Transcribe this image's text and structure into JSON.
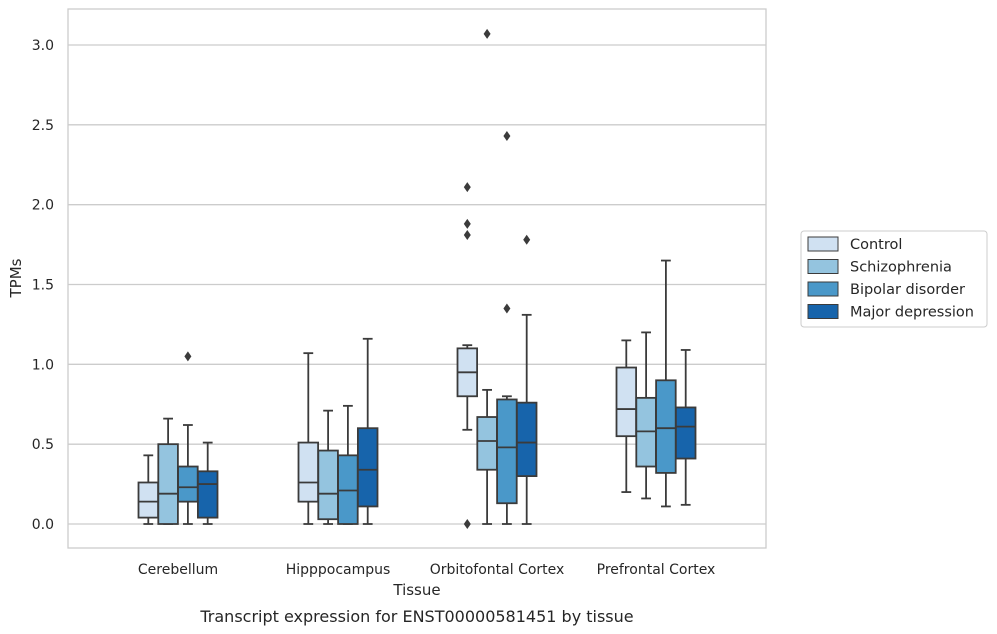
{
  "chart_data": {
    "type": "box",
    "title": "",
    "caption": "Transcript expression for ENST00000581451 by tissue",
    "xlabel": "Tissue",
    "ylabel": "TPMs",
    "ylim": [
      -0.15,
      3.22
    ],
    "yticks": [
      0.0,
      0.5,
      1.0,
      1.5,
      2.0,
      2.5,
      3.0
    ],
    "ytick_labels": [
      "0.0",
      "0.5",
      "1.0",
      "1.5",
      "2.0",
      "2.5",
      "3.0"
    ],
    "grid": "horizontal",
    "legend_position": "right",
    "categories": [
      "Cerebellum",
      "Hipppocampus",
      "Orbitofontal Cortex",
      "Prefrontal Cortex"
    ],
    "series": [
      {
        "name": "Control",
        "color": "#d0e1f2",
        "boxes": [
          {
            "whislo": 0.0,
            "q1": 0.04,
            "med": 0.14,
            "q3": 0.26,
            "whishi": 0.43,
            "fliers": []
          },
          {
            "whislo": 0.0,
            "q1": 0.14,
            "med": 0.26,
            "q3": 0.51,
            "whishi": 1.07,
            "fliers": []
          },
          {
            "whislo": 0.59,
            "q1": 0.8,
            "med": 0.95,
            "q3": 1.1,
            "whishi": 1.12,
            "fliers": [
              0.0,
              1.81,
              1.88,
              2.11
            ]
          },
          {
            "whislo": 0.2,
            "q1": 0.55,
            "med": 0.72,
            "q3": 0.98,
            "whishi": 1.15,
            "fliers": []
          }
        ]
      },
      {
        "name": "Schizophrenia",
        "color": "#94c4df",
        "boxes": [
          {
            "whislo": 0.0,
            "q1": 0.0,
            "med": 0.19,
            "q3": 0.5,
            "whishi": 0.66,
            "fliers": []
          },
          {
            "whislo": 0.0,
            "q1": 0.03,
            "med": 0.19,
            "q3": 0.46,
            "whishi": 0.71,
            "fliers": []
          },
          {
            "whislo": 0.0,
            "q1": 0.34,
            "med": 0.52,
            "q3": 0.67,
            "whishi": 0.84,
            "fliers": [
              3.07
            ]
          },
          {
            "whislo": 0.16,
            "q1": 0.36,
            "med": 0.58,
            "q3": 0.79,
            "whishi": 1.2,
            "fliers": []
          }
        ]
      },
      {
        "name": "Bipolar disorder",
        "color": "#4a98c9",
        "boxes": [
          {
            "whislo": 0.0,
            "q1": 0.14,
            "med": 0.23,
            "q3": 0.36,
            "whishi": 0.62,
            "fliers": [
              1.05
            ]
          },
          {
            "whislo": 0.0,
            "q1": 0.0,
            "med": 0.21,
            "q3": 0.43,
            "whishi": 0.74,
            "fliers": []
          },
          {
            "whislo": 0.0,
            "q1": 0.13,
            "med": 0.48,
            "q3": 0.78,
            "whishi": 0.8,
            "fliers": [
              1.35,
              2.43
            ]
          },
          {
            "whislo": 0.11,
            "q1": 0.32,
            "med": 0.6,
            "q3": 0.9,
            "whishi": 1.65,
            "fliers": []
          }
        ]
      },
      {
        "name": "Major depression",
        "color": "#1764ab",
        "boxes": [
          {
            "whislo": 0.0,
            "q1": 0.04,
            "med": 0.25,
            "q3": 0.33,
            "whishi": 0.51,
            "fliers": []
          },
          {
            "whislo": 0.0,
            "q1": 0.11,
            "med": 0.34,
            "q3": 0.6,
            "whishi": 1.16,
            "fliers": []
          },
          {
            "whislo": 0.0,
            "q1": 0.3,
            "med": 0.51,
            "q3": 0.76,
            "whishi": 1.31,
            "fliers": [
              1.78
            ]
          },
          {
            "whislo": 0.12,
            "q1": 0.41,
            "med": 0.61,
            "q3": 0.73,
            "whishi": 1.09,
            "fliers": []
          }
        ]
      }
    ]
  }
}
